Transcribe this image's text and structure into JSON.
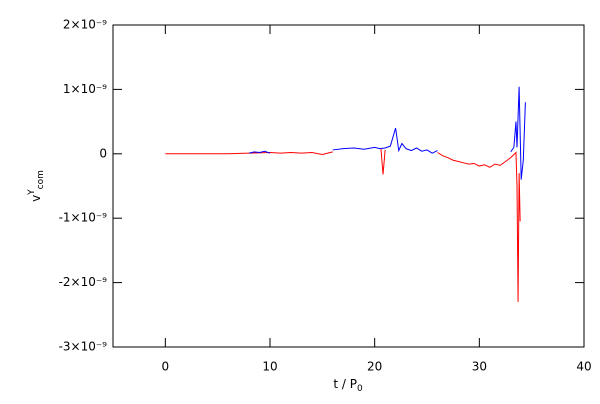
{
  "chart_data": {
    "type": "line",
    "xlabel": {
      "base": "t / P",
      "sub": "0"
    },
    "ylabel": {
      "base": "v",
      "sup": "Y",
      "sub": "com"
    },
    "xlim": [
      -5,
      40
    ],
    "xticks": [
      0,
      10,
      20,
      30,
      40
    ],
    "ylim": [
      -3e-09,
      2e-09
    ],
    "yticks": [
      {
        "value": -3e-09,
        "label": "-3×10⁻⁹"
      },
      {
        "value": -2e-09,
        "label": "-2×10⁻⁹"
      },
      {
        "value": -1e-09,
        "label": "-1×10⁻⁹"
      },
      0,
      {
        "value": 1e-09,
        "label": "1×10⁻⁹"
      },
      {
        "value": 2e-09,
        "label": "2×10⁻⁹"
      }
    ],
    "series": [
      {
        "color": "#ff0000",
        "x": [
          0,
          2,
          4,
          6,
          8,
          10,
          11,
          12,
          13,
          14,
          15,
          16,
          17,
          20.6,
          20.8,
          21,
          24,
          26,
          26.5,
          27,
          27.5,
          28,
          28.5,
          29,
          29.5,
          30,
          30.5,
          31,
          31.5,
          32,
          32.5,
          33,
          33.5,
          33.6,
          33.7,
          33.8,
          33.9
        ],
        "values": [
          0,
          0,
          0,
          0,
          1e-11,
          2e-11,
          1e-11,
          2e-11,
          1e-11,
          2e-11,
          -1e-11,
          3e-11,
          null,
          8e-11,
          -3.2e-10,
          6e-11,
          null,
          2e-11,
          -3e-11,
          -6e-11,
          -1e-10,
          -1.2e-10,
          -1.4e-10,
          -1.6e-10,
          -1.5e-10,
          -1.9e-10,
          -1.7e-10,
          -2.1e-10,
          -1.6e-10,
          -1.8e-10,
          -1.2e-10,
          -6e-11,
          2e-11,
          -5e-10,
          -2.3e-09,
          -3e-10,
          -1.05e-09
        ]
      },
      {
        "color": "#0000ff",
        "x": [
          8,
          8.5,
          9,
          9.5,
          10,
          12,
          16,
          17,
          18,
          19,
          20,
          20.5,
          21,
          21.5,
          22,
          22.3,
          22.6,
          23,
          23.5,
          24,
          24.5,
          25,
          25.5,
          26,
          30,
          33,
          33.3,
          33.5,
          33.6,
          33.8,
          34,
          34.2,
          34.4
        ],
        "values": [
          1e-11,
          3e-11,
          2e-11,
          4e-11,
          1e-11,
          null,
          6e-11,
          8e-11,
          9e-11,
          7e-11,
          1e-10,
          8e-11,
          9e-11,
          1.2e-10,
          4e-10,
          5e-11,
          1.6e-10,
          8e-11,
          5e-11,
          9e-11,
          4e-11,
          6e-11,
          1e-11,
          5e-11,
          null,
          3e-11,
          1e-10,
          5e-10,
          1e-10,
          1.04e-09,
          -4e-10,
          -1e-10,
          8e-10
        ]
      }
    ]
  }
}
